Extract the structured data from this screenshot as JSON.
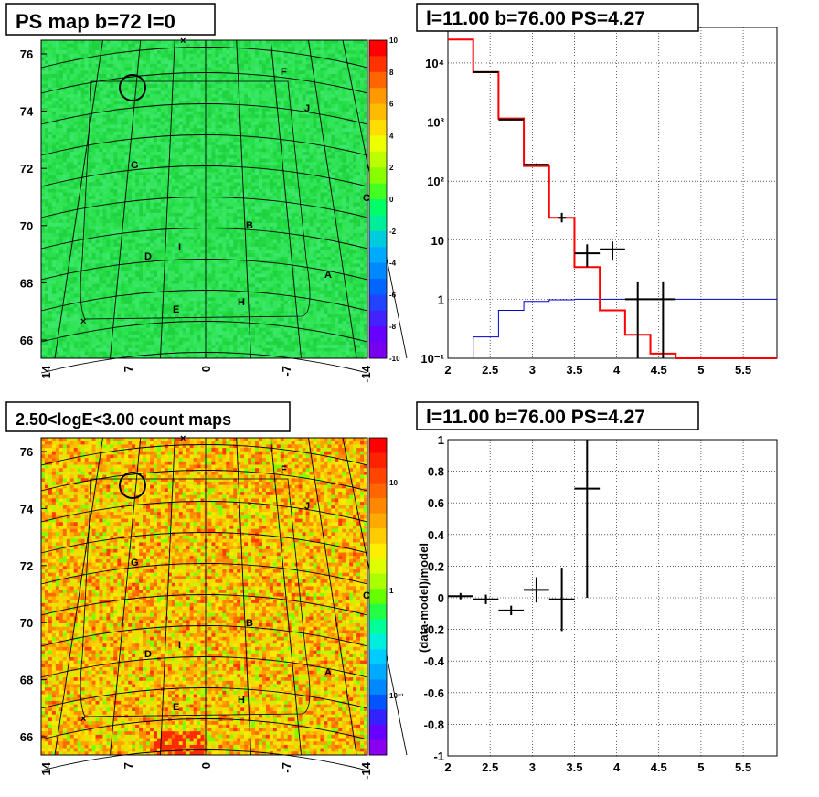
{
  "chart_data": [
    {
      "id": "ps_map",
      "type": "heatmap",
      "title": "PS map b=72 l=0",
      "x_ticks": [
        "14",
        "7",
        "0",
        "-7",
        "-14"
      ],
      "y_ticks": [
        "66",
        "68",
        "70",
        "72",
        "74",
        "76"
      ],
      "color_scale": {
        "min": -10,
        "max": 10,
        "ticks": [
          "10",
          "8",
          "6",
          "4",
          "2",
          "0",
          "-2",
          "-4",
          "-6",
          "-8",
          "-10"
        ]
      },
      "region_labels": [
        "F",
        "J",
        "G",
        "C",
        "B",
        "I",
        "D",
        "A",
        "H",
        "E"
      ],
      "dominant_value": 0.5
    },
    {
      "id": "spectrum",
      "type": "line",
      "title": "l=11.00 b=76.00 PS=4.27",
      "xlim": [
        2,
        5.9
      ],
      "ylim_log": [
        0.1,
        40000
      ],
      "x_ticks": [
        "2",
        "2.5",
        "3",
        "3.5",
        "4",
        "4.5",
        "5",
        "5.5"
      ],
      "y_ticks": [
        "10⁻¹",
        "1",
        "10",
        "10²",
        "10³",
        "10⁴"
      ],
      "series": [
        {
          "style": "red-step",
          "edges": [
            2.0,
            2.3,
            2.6,
            2.9,
            3.2,
            3.5,
            3.8,
            4.1,
            4.4,
            4.7,
            5.9
          ],
          "values": [
            25000,
            7000,
            1150,
            180,
            24,
            3.5,
            0.65,
            0.25,
            0.12,
            0.1
          ]
        },
        {
          "style": "blue-step",
          "edges": [
            2.3,
            2.6,
            2.9,
            3.2,
            3.5,
            3.8,
            5.9
          ],
          "values": [
            0.23,
            0.65,
            0.92,
            0.98,
            1.0,
            1.0
          ]
        }
      ],
      "points": [
        {
          "x": 2.45,
          "y": 7000,
          "xerr": 0.15,
          "ylo": 6900,
          "yhi": 7100
        },
        {
          "x": 2.75,
          "y": 1100,
          "xerr": 0.15,
          "ylo": 1070,
          "yhi": 1130
        },
        {
          "x": 3.05,
          "y": 190,
          "xerr": 0.15,
          "ylo": 180,
          "yhi": 200
        },
        {
          "x": 3.35,
          "y": 24,
          "xerr": 0.05,
          "ylo": 20,
          "yhi": 29
        },
        {
          "x": 3.65,
          "y": 6,
          "xerr": 0.15,
          "ylo": 3.5,
          "yhi": 8.5
        },
        {
          "x": 3.95,
          "y": 7,
          "xerr": 0.15,
          "ylo": 4.5,
          "yhi": 9.5
        },
        {
          "x": 4.25,
          "y": 1,
          "xerr": 0.15,
          "ylo": 0.08,
          "yhi": 2
        },
        {
          "x": 4.55,
          "y": 1,
          "xerr": 0.15,
          "ylo": 0.08,
          "yhi": 2
        }
      ]
    },
    {
      "id": "count_map",
      "type": "heatmap",
      "title": "2.50<logE<3.00 count maps",
      "x_ticks": [
        "14",
        "7",
        "0",
        "-7",
        "-14"
      ],
      "y_ticks": [
        "66",
        "68",
        "70",
        "72",
        "74",
        "76"
      ],
      "color_scale_log": {
        "ticks": [
          "10",
          "1",
          "10⁻¹"
        ]
      },
      "region_labels": [
        "F",
        "J",
        "G",
        "C",
        "B",
        "I",
        "D",
        "A",
        "H",
        "E"
      ]
    },
    {
      "id": "residual",
      "type": "scatter",
      "title": "l=11.00 b=76.00 PS=4.27",
      "ylabel": "(data-model)/model",
      "xlim": [
        2,
        5.9
      ],
      "ylim": [
        -1,
        1
      ],
      "x_ticks": [
        "2",
        "2.5",
        "3",
        "3.5",
        "4",
        "4.5",
        "5",
        "5.5"
      ],
      "y_ticks": [
        "1",
        "0.8",
        "0.6",
        "0.4",
        "0.2",
        "0",
        "-0.2",
        "-0.4",
        "-0.6",
        "-0.8",
        "-1"
      ],
      "points": [
        {
          "x": 2.15,
          "y": 0.01,
          "xerr": 0.15,
          "yerr": 0.02
        },
        {
          "x": 2.45,
          "y": -0.01,
          "xerr": 0.15,
          "yerr": 0.03
        },
        {
          "x": 2.75,
          "y": -0.08,
          "xerr": 0.15,
          "yerr": 0.03
        },
        {
          "x": 3.05,
          "y": 0.05,
          "xerr": 0.15,
          "yerr": 0.08
        },
        {
          "x": 3.35,
          "y": -0.01,
          "xerr": 0.15,
          "yerr": 0.2
        },
        {
          "x": 3.65,
          "y": 0.69,
          "xerr": 0.15,
          "yerr": 0.69
        }
      ]
    }
  ]
}
